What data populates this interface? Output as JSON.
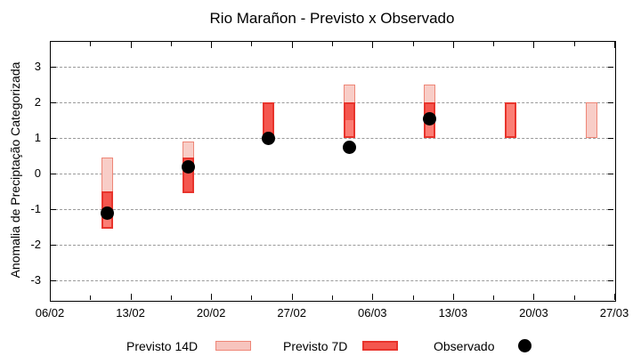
{
  "chart_data": {
    "type": "bar",
    "subtype": "range-boxes-with-observed-points",
    "title": "Rio Marañon - Previsto x Observado",
    "xlabel": "",
    "ylabel": "Anomalia de Preciptação Categorizada",
    "ylim": [
      -3.55,
      3.725
    ],
    "yticks": [
      -3,
      -2,
      -1,
      0,
      1,
      2,
      3
    ],
    "ytick_labels": [
      "-3",
      "-2",
      "-1",
      "0",
      "1",
      "2",
      "3"
    ],
    "xlim_days": [
      0,
      49
    ],
    "xtick_days": [
      0,
      7,
      14,
      21,
      28,
      35,
      42,
      49
    ],
    "xtick_labels": [
      "06/02",
      "13/02",
      "20/02",
      "27/02",
      "06/03",
      "13/03",
      "20/03",
      "27/03"
    ],
    "minor_xtick_days": [
      3.5,
      10.5,
      17.5,
      24.5,
      31.5,
      38.5,
      45.5
    ],
    "grid": "horizontal-dashed",
    "legend_position": "below",
    "series": [
      {
        "name": "Previsto 14D",
        "type": "range-box"
      },
      {
        "name": "Previsto 7D",
        "type": "range-box"
      },
      {
        "name": "Observado",
        "type": "point"
      }
    ],
    "groups": [
      {
        "date": "11/02",
        "day": 5,
        "previsto_14d": [
          -1.3,
          0.45
        ],
        "previsto_7d": [
          -1.55,
          -0.5
        ],
        "observado": -1.1
      },
      {
        "date": "18/02",
        "day": 12,
        "previsto_14d": [
          -0.55,
          0.9
        ],
        "previsto_7d": [
          -0.55,
          0.45
        ],
        "observado": 0.2
      },
      {
        "date": "25/02",
        "day": 19,
        "previsto_14d": [
          1.0,
          2.0
        ],
        "previsto_7d": [
          1.0,
          2.0
        ],
        "observado": 1.0
      },
      {
        "date": "04/03",
        "day": 26,
        "previsto_14d": [
          1.5,
          2.5
        ],
        "previsto_7d": [
          1.0,
          2.0
        ],
        "observado": 0.75
      },
      {
        "date": "11/03",
        "day": 33,
        "previsto_14d": [
          1.5,
          2.5
        ],
        "previsto_7d": [
          1.0,
          2.0
        ],
        "observado": 1.55
      },
      {
        "date": "18/03",
        "day": 40,
        "previsto_14d": null,
        "previsto_7d": [
          1.0,
          2.0
        ],
        "observado": null
      },
      {
        "date": "25/03",
        "day": 47,
        "previsto_14d": [
          1.0,
          2.0
        ],
        "previsto_7d": null,
        "observado": null
      }
    ],
    "legend": {
      "items": [
        {
          "label": "Previsto 14D",
          "swatch": "box-14d"
        },
        {
          "label": "Previsto 7D",
          "swatch": "box-7d"
        },
        {
          "label": "Observado",
          "swatch": "black-dot"
        }
      ]
    }
  },
  "colors": {
    "background": "#ffffff",
    "axis": "#000000",
    "grid": "#9a9a9a",
    "p14_fill": "#f8cdc7",
    "p14_border": "#ee8677",
    "p7_fill_alone": "#fb7e75",
    "p7_fill_overlap": "#f4564e",
    "p7_border": "#e8342c",
    "legend_p14_fill": "#f7c4be",
    "legend_p7_fill": "#f4564e",
    "observado": "#000000"
  }
}
